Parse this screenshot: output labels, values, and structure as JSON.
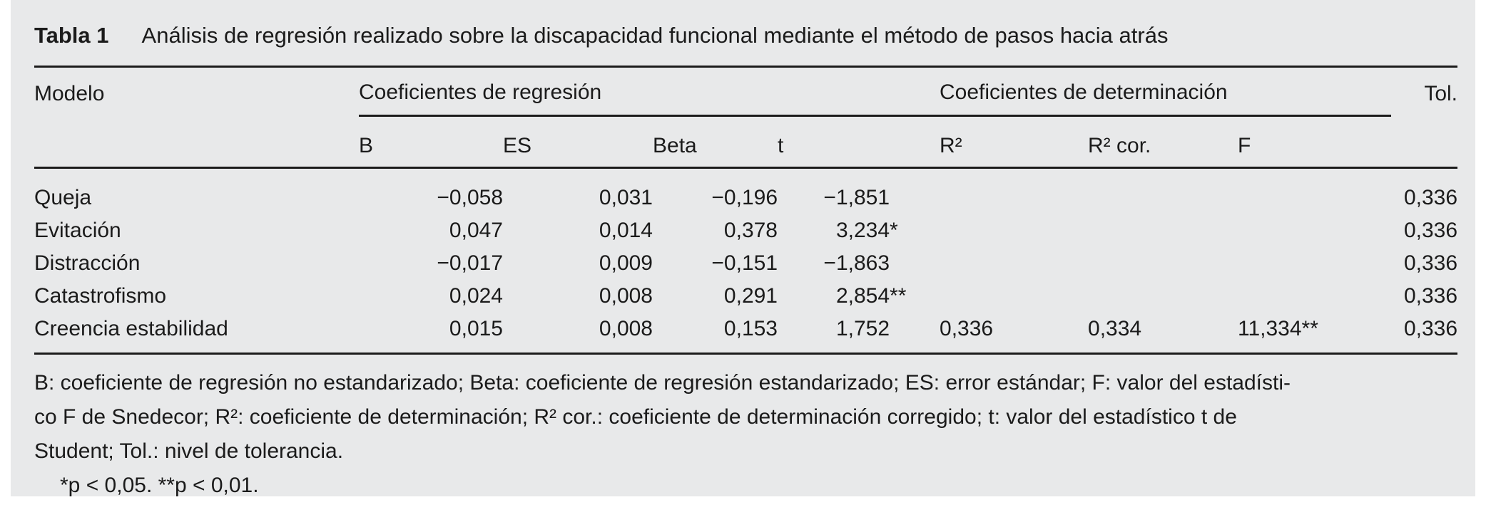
{
  "colors": {
    "panel_bg": "#e8e9ea",
    "text": "#1b1b1b",
    "rule": "#1b1b1b"
  },
  "title": {
    "label": "Tabla 1",
    "text": "Análisis de regresión realizado sobre la discapacidad funcional mediante el método de pasos hacia atrás"
  },
  "table": {
    "headers": {
      "modelo": "Modelo",
      "group_regresion": "Coeficientes de regresión",
      "group_determinacion": "Coeficientes de determinación",
      "tol": "Tol.",
      "b": "B",
      "es": "ES",
      "beta": "Beta",
      "t": "t",
      "r2": "R²",
      "r2cor": "R² cor.",
      "f": "F"
    },
    "rows": [
      {
        "modelo": "Queja",
        "b": "−0,058",
        "es": "0,031",
        "beta": "−0,196",
        "t": "−1,851",
        "t_marker": "",
        "r2": "",
        "r2cor": "",
        "f": "",
        "f_marker": "",
        "tol": "0,336"
      },
      {
        "modelo": "Evitación",
        "b": "0,047",
        "es": "0,014",
        "beta": "0,378",
        "t": "3,234",
        "t_marker": "*",
        "r2": "",
        "r2cor": "",
        "f": "",
        "f_marker": "",
        "tol": "0,336"
      },
      {
        "modelo": "Distracción",
        "b": "−0,017",
        "es": "0,009",
        "beta": "−0,151",
        "t": "−1,863",
        "t_marker": "",
        "r2": "",
        "r2cor": "",
        "f": "",
        "f_marker": "",
        "tol": "0,336"
      },
      {
        "modelo": "Catastrofismo",
        "b": "0,024",
        "es": "0,008",
        "beta": "0,291",
        "t": "2,854",
        "t_marker": "**",
        "r2": "",
        "r2cor": "",
        "f": "",
        "f_marker": "",
        "tol": "0,336"
      },
      {
        "modelo": "Creencia estabilidad",
        "b": "0,015",
        "es": "0,008",
        "beta": "0,153",
        "t": "1,752",
        "t_marker": "",
        "r2": "0,336",
        "r2cor": "0,334",
        "f": "11,334",
        "f_marker": "**",
        "tol": "0,336"
      }
    ]
  },
  "footnotes": {
    "line1": "B: coeficiente de regresión no estandarizado; Beta: coeficiente de regresión estandarizado; ES: error estándar; F: valor del estadísti-",
    "line2": "co F de Snedecor; R²: coeficiente de determinación; R² cor.: coeficiente de determinación corregido; t: valor del estadístico t de",
    "line3": "Student; Tol.: nivel de tolerancia.",
    "pline": "*p < 0,05. **p < 0,01."
  }
}
